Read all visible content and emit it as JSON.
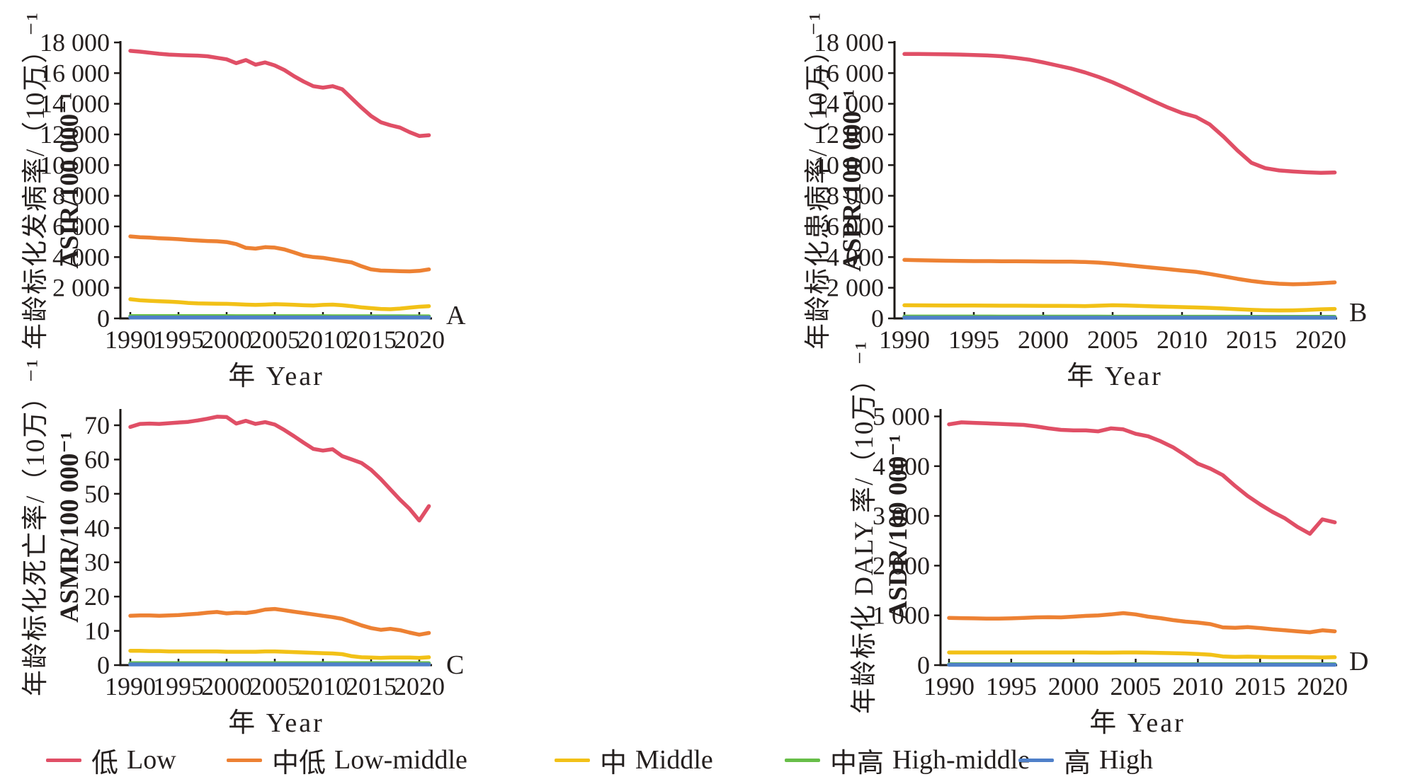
{
  "figure": {
    "background": "#ffffff"
  },
  "colors": {
    "low": "#E04F66",
    "low_middle": "#ED8133",
    "middle": "#F2C117",
    "high_middle": "#67BE48",
    "high": "#4F80C9",
    "axis": "#1c1816",
    "text": "#241f1e"
  },
  "legend": {
    "items": [
      {
        "label_cn": "低",
        "label_en": "Low",
        "color": "#E04F66"
      },
      {
        "label_cn": "中低",
        "label_en": "Low-middle",
        "color": "#ED8133"
      },
      {
        "label_cn": "中",
        "label_en": "Middle",
        "color": "#F2C117"
      },
      {
        "label_cn": "中高",
        "label_en": "High-middle",
        "color": "#67BE48"
      },
      {
        "label_cn": "高",
        "label_en": "High",
        "color": "#4F80C9"
      }
    ]
  },
  "chart_data": [
    {
      "type": "line",
      "letter": "A",
      "ylabel_cn": "年龄标化发病率/（10万）⁻¹",
      "ylabel_en": "ASIR/100 000⁻¹",
      "xlabel": "年  Year",
      "x_start": 1990,
      "xticks": [
        1990,
        1995,
        2000,
        2005,
        2010,
        2015,
        2020
      ],
      "yticks": [
        0,
        2000,
        4000,
        6000,
        8000,
        10000,
        12000,
        14000,
        16000,
        18000
      ],
      "ylim": [
        0,
        18000
      ],
      "series": [
        {
          "name_cn": "低",
          "name_en": "Low",
          "color": "#E04F66",
          "values": [
            17450,
            17400,
            17330,
            17260,
            17210,
            17180,
            17160,
            17140,
            17100,
            17000,
            16900,
            16650,
            16850,
            16550,
            16700,
            16500,
            16200,
            15800,
            15450,
            15150,
            15050,
            15150,
            14950,
            14350,
            13750,
            13200,
            12800,
            12600,
            12450,
            12150,
            11900,
            11950
          ]
        },
        {
          "name_cn": "中低",
          "name_en": "Low-middle",
          "color": "#ED8133",
          "values": [
            5350,
            5300,
            5270,
            5230,
            5200,
            5170,
            5120,
            5080,
            5050,
            5030,
            4980,
            4850,
            4600,
            4550,
            4650,
            4620,
            4500,
            4300,
            4100,
            4000,
            3950,
            3850,
            3750,
            3650,
            3400,
            3200,
            3120,
            3100,
            3080,
            3070,
            3100,
            3200
          ]
        },
        {
          "name_cn": "中",
          "name_en": "Middle",
          "color": "#F2C117",
          "values": [
            1250,
            1180,
            1150,
            1120,
            1100,
            1060,
            1010,
            980,
            970,
            960,
            950,
            930,
            900,
            880,
            900,
            930,
            910,
            890,
            860,
            840,
            880,
            900,
            860,
            800,
            720,
            670,
            620,
            600,
            640,
            700,
            760,
            800
          ]
        },
        {
          "name_cn": "中高",
          "name_en": "High-middle",
          "color": "#67BE48",
          "values": [
            150,
            150,
            150,
            149,
            149,
            148,
            148,
            147,
            147,
            146,
            146,
            145,
            145,
            144,
            144,
            143,
            143,
            142,
            142,
            141,
            141,
            140,
            140,
            139,
            139,
            138,
            138,
            137,
            137,
            136,
            136,
            135
          ]
        },
        {
          "name_cn": "高",
          "name_en": "High",
          "color": "#4F80C9",
          "values": [
            60,
            60,
            60,
            60,
            60,
            60,
            60,
            60,
            60,
            60,
            60,
            60,
            60,
            60,
            60,
            60,
            60,
            60,
            60,
            60,
            60,
            60,
            60,
            60,
            60,
            60,
            60,
            60,
            60,
            60,
            60,
            60
          ]
        }
      ]
    },
    {
      "type": "line",
      "letter": "B",
      "ylabel_cn": "年龄标化患病率/（10万）⁻¹",
      "ylabel_en": "ASPR/100 000⁻¹",
      "xlabel": "年  Year",
      "x_start": 1990,
      "xticks": [
        1990,
        1995,
        2000,
        2005,
        2010,
        2015,
        2020
      ],
      "yticks": [
        0,
        2000,
        4000,
        6000,
        8000,
        10000,
        12000,
        14000,
        16000,
        18000
      ],
      "ylim": [
        0,
        18000
      ],
      "series": [
        {
          "name_cn": "低",
          "name_en": "Low",
          "color": "#E04F66",
          "values": [
            17250,
            17250,
            17240,
            17230,
            17210,
            17180,
            17150,
            17100,
            17000,
            16880,
            16700,
            16500,
            16300,
            16050,
            15750,
            15400,
            15000,
            14580,
            14150,
            13750,
            13400,
            13150,
            12650,
            11850,
            10950,
            10150,
            9800,
            9650,
            9580,
            9530,
            9500,
            9520
          ]
        },
        {
          "name_cn": "中低",
          "name_en": "Low-middle",
          "color": "#ED8133",
          "values": [
            3820,
            3800,
            3780,
            3760,
            3750,
            3740,
            3740,
            3730,
            3730,
            3720,
            3710,
            3700,
            3700,
            3680,
            3640,
            3570,
            3480,
            3390,
            3300,
            3210,
            3120,
            3040,
            2900,
            2740,
            2580,
            2440,
            2330,
            2260,
            2230,
            2250,
            2300,
            2350
          ]
        },
        {
          "name_cn": "中",
          "name_en": "Middle",
          "color": "#F2C117",
          "values": [
            860,
            855,
            850,
            845,
            840,
            840,
            835,
            830,
            830,
            825,
            820,
            815,
            810,
            805,
            830,
            860,
            840,
            810,
            785,
            760,
            740,
            715,
            690,
            645,
            600,
            560,
            530,
            515,
            525,
            555,
            595,
            620
          ]
        },
        {
          "name_cn": "中高",
          "name_en": "High-middle",
          "color": "#67BE48",
          "values": [
            120,
            120,
            120,
            119,
            119,
            118,
            118,
            117,
            117,
            116,
            116,
            115,
            115,
            114,
            114,
            113,
            113,
            112,
            112,
            111,
            111,
            110,
            110,
            109,
            109,
            108,
            108,
            107,
            107,
            106,
            106,
            105
          ]
        },
        {
          "name_cn": "高",
          "name_en": "High",
          "color": "#4F80C9",
          "values": [
            45,
            45,
            45,
            45,
            45,
            45,
            45,
            45,
            45,
            45,
            45,
            45,
            45,
            45,
            45,
            45,
            45,
            45,
            45,
            45,
            45,
            45,
            45,
            45,
            45,
            45,
            45,
            45,
            45,
            45,
            45,
            45
          ]
        }
      ]
    },
    {
      "type": "line",
      "letter": "C",
      "ylabel_cn": "年龄标化死亡率/（10万）⁻¹",
      "ylabel_en": "ASMR/100 000⁻¹",
      "xlabel": "年  Year",
      "x_start": 1990,
      "xticks": [
        1990,
        1995,
        2000,
        2005,
        2010,
        2015,
        2020
      ],
      "yticks": [
        0,
        10,
        20,
        30,
        40,
        50,
        60,
        70
      ],
      "ylim": [
        0,
        75
      ],
      "series": [
        {
          "name_cn": "低",
          "name_en": "Low",
          "color": "#E04F66",
          "values": [
            69.5,
            70.4,
            70.5,
            70.4,
            70.6,
            70.8,
            71.0,
            71.4,
            71.9,
            72.5,
            72.4,
            70.5,
            71.3,
            70.4,
            70.9,
            70.2,
            68.6,
            66.8,
            64.9,
            63.1,
            62.6,
            63.0,
            61.0,
            60.0,
            59.0,
            57.0,
            54.3,
            51.3,
            48.3,
            45.6,
            42.2,
            46.4
          ]
        },
        {
          "name_cn": "中低",
          "name_en": "Low-middle",
          "color": "#ED8133",
          "values": [
            14.4,
            14.5,
            14.5,
            14.4,
            14.5,
            14.6,
            14.8,
            15.0,
            15.3,
            15.5,
            15.1,
            15.3,
            15.2,
            15.6,
            16.2,
            16.4,
            16.0,
            15.6,
            15.2,
            14.8,
            14.4,
            14.0,
            13.5,
            12.6,
            11.6,
            10.8,
            10.3,
            10.6,
            10.2,
            9.5,
            8.9,
            9.4
          ]
        },
        {
          "name_cn": "中",
          "name_en": "Middle",
          "color": "#F2C117",
          "values": [
            4.2,
            4.2,
            4.1,
            4.1,
            4.0,
            4.0,
            4.0,
            4.0,
            4.0,
            4.0,
            3.9,
            3.9,
            3.9,
            3.9,
            4.0,
            4.0,
            3.9,
            3.8,
            3.7,
            3.6,
            3.5,
            3.4,
            3.2,
            2.6,
            2.3,
            2.2,
            2.1,
            2.2,
            2.2,
            2.2,
            2.1,
            2.3
          ]
        },
        {
          "name_cn": "中高",
          "name_en": "High-middle",
          "color": "#67BE48",
          "values": [
            0.55,
            0.55,
            0.55,
            0.55,
            0.55,
            0.55,
            0.55,
            0.55,
            0.55,
            0.55,
            0.55,
            0.55,
            0.55,
            0.55,
            0.55,
            0.55,
            0.55,
            0.55,
            0.55,
            0.55,
            0.55,
            0.55,
            0.55,
            0.55,
            0.55,
            0.55,
            0.55,
            0.55,
            0.55,
            0.55,
            0.55,
            0.55
          ]
        },
        {
          "name_cn": "高",
          "name_en": "High",
          "color": "#4F80C9",
          "values": [
            0.2,
            0.2,
            0.2,
            0.2,
            0.2,
            0.2,
            0.2,
            0.2,
            0.2,
            0.2,
            0.2,
            0.2,
            0.2,
            0.2,
            0.2,
            0.2,
            0.2,
            0.2,
            0.2,
            0.2,
            0.2,
            0.2,
            0.2,
            0.2,
            0.2,
            0.2,
            0.2,
            0.2,
            0.2,
            0.2,
            0.2,
            0.2
          ]
        }
      ]
    },
    {
      "type": "line",
      "letter": "D",
      "ylabel_cn": "年龄标化 DALY 率/（10万）⁻¹",
      "ylabel_en": "ASDR/100 000⁻¹",
      "xlabel": "年  Year",
      "x_start": 1990,
      "xticks": [
        1990,
        1995,
        2000,
        2005,
        2010,
        2015,
        2020
      ],
      "yticks": [
        0,
        1000,
        2000,
        3000,
        4000,
        5000
      ],
      "ylim": [
        0,
        5150
      ],
      "series": [
        {
          "name_cn": "低",
          "name_en": "Low",
          "color": "#E04F66",
          "values": [
            4840,
            4880,
            4870,
            4860,
            4850,
            4840,
            4830,
            4800,
            4760,
            4730,
            4720,
            4720,
            4700,
            4760,
            4740,
            4650,
            4600,
            4500,
            4380,
            4220,
            4050,
            3950,
            3820,
            3600,
            3400,
            3230,
            3080,
            2950,
            2780,
            2640,
            2930,
            2870
          ]
        },
        {
          "name_cn": "中低",
          "name_en": "Low-middle",
          "color": "#ED8133",
          "values": [
            950,
            945,
            940,
            935,
            935,
            940,
            950,
            960,
            965,
            960,
            975,
            990,
            1000,
            1020,
            1045,
            1020,
            975,
            945,
            905,
            875,
            855,
            825,
            760,
            750,
            765,
            745,
            720,
            700,
            680,
            660,
            700,
            680
          ]
        },
        {
          "name_cn": "中",
          "name_en": "Middle",
          "color": "#F2C117",
          "values": [
            255,
            255,
            255,
            255,
            255,
            255,
            255,
            255,
            255,
            255,
            255,
            255,
            250,
            250,
            255,
            255,
            250,
            245,
            240,
            235,
            225,
            210,
            175,
            165,
            170,
            165,
            160,
            160,
            160,
            158,
            155,
            160
          ]
        },
        {
          "name_cn": "中高",
          "name_en": "High-middle",
          "color": "#67BE48",
          "values": [
            18,
            18,
            18,
            18,
            18,
            18,
            18,
            18,
            18,
            18,
            18,
            18,
            18,
            18,
            18,
            18,
            18,
            18,
            18,
            18,
            18,
            18,
            18,
            18,
            18,
            18,
            18,
            18,
            18,
            18,
            18,
            18
          ]
        },
        {
          "name_cn": "高",
          "name_en": "High",
          "color": "#4F80C9",
          "values": [
            7,
            7,
            7,
            7,
            7,
            7,
            7,
            7,
            7,
            7,
            7,
            7,
            7,
            7,
            7,
            7,
            7,
            7,
            7,
            7,
            7,
            7,
            7,
            7,
            7,
            7,
            7,
            7,
            7,
            7,
            7,
            7
          ]
        }
      ]
    }
  ]
}
